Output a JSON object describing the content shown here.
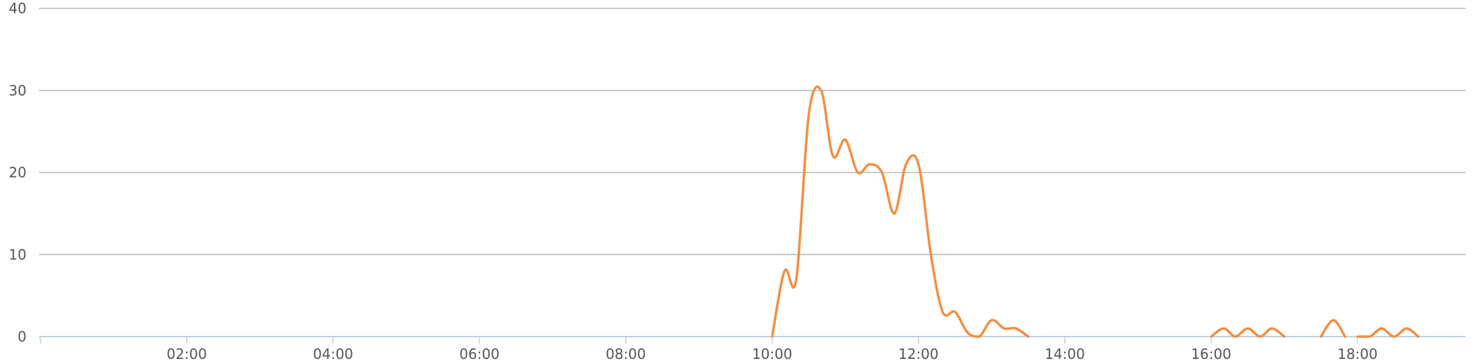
{
  "chart_data": {
    "type": "line",
    "title": "",
    "xlabel": "",
    "ylabel": "",
    "x_unit": "time of day (hours)",
    "xlim": [
      0,
      22
    ],
    "ylim": [
      0,
      40
    ],
    "yticks": [
      0,
      10,
      20,
      30,
      40
    ],
    "ytick_labels": [
      "0",
      "10",
      "20",
      "30",
      "40"
    ],
    "xtick_marks": [
      0,
      2,
      4,
      6,
      8,
      10,
      12,
      14,
      16,
      18,
      20
    ],
    "xticks": [
      2,
      4,
      6,
      8,
      10,
      12,
      14,
      16,
      18
    ],
    "xtick_labels": [
      "02:00",
      "04:00",
      "06:00",
      "08:00",
      "10:00",
      "12:00",
      "14:00",
      "16:00",
      "18:00"
    ],
    "grid": true,
    "legend": "none",
    "colors": {
      "series": "#f28f43",
      "grid": "#b5b5b5",
      "axis": "#c0d0e0",
      "text": "#555555"
    },
    "series": [
      {
        "x": [
          10.0,
          10.17,
          10.33,
          10.5,
          10.67,
          10.83,
          11.0,
          11.17,
          11.33,
          11.5,
          11.67,
          11.83,
          12.0,
          12.17,
          12.33,
          12.5,
          12.67,
          12.83,
          13.0,
          13.17,
          13.33,
          13.5
        ],
        "y": [
          0,
          8,
          7,
          27,
          30,
          22,
          24,
          20,
          21,
          20,
          15,
          21,
          21,
          10,
          3,
          3,
          0.5,
          0,
          2,
          1,
          1,
          0
        ]
      },
      {
        "x": [
          16.0,
          16.17,
          16.33,
          16.5,
          16.67,
          16.83,
          17.0
        ],
        "y": [
          0,
          1,
          0,
          1,
          0,
          1,
          0
        ]
      },
      {
        "x": [
          17.5,
          17.67,
          17.83
        ],
        "y": [
          0,
          2,
          0
        ]
      },
      {
        "x": [
          18.0,
          18.17,
          18.33,
          18.5,
          18.67,
          18.83
        ],
        "y": [
          0,
          0,
          1,
          0,
          1,
          0
        ]
      }
    ]
  }
}
